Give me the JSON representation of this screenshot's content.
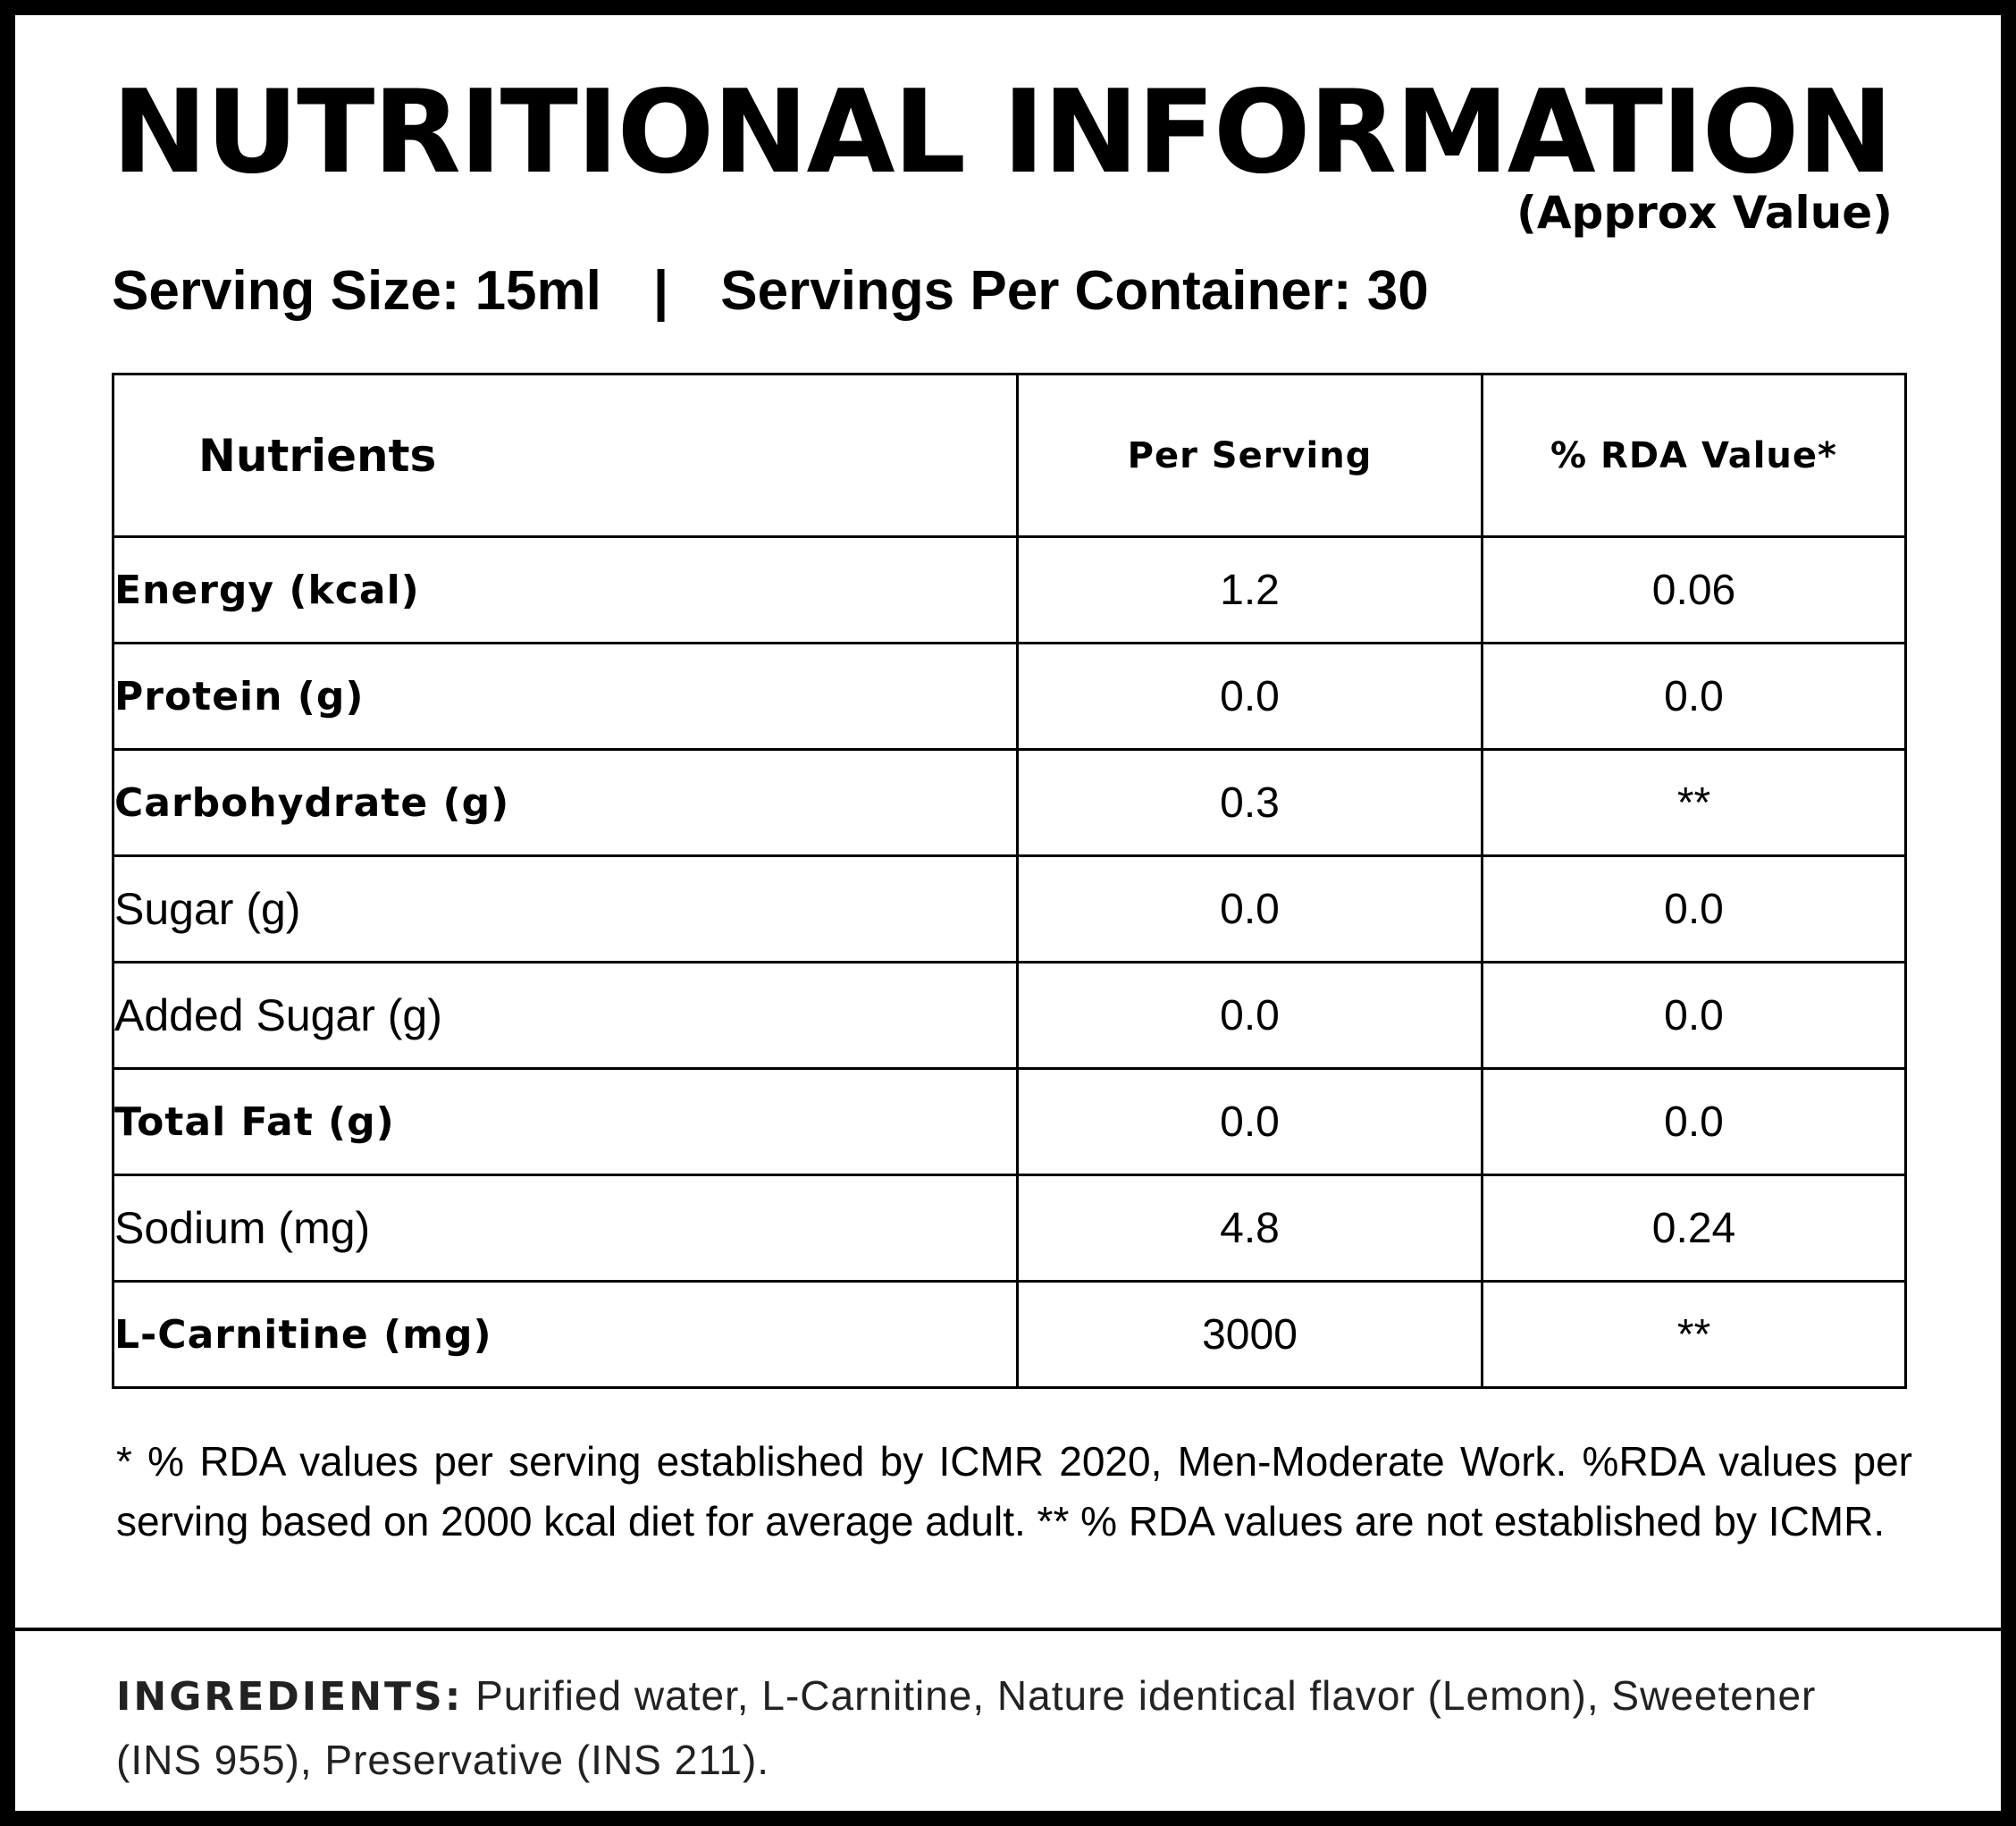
{
  "title": "NUTRITIONAL INFORMATION",
  "subtitle": "(Approx Value)",
  "serving": {
    "size": "Serving Size: 15ml",
    "separator": "|",
    "per_container": "Servings Per Container: 30"
  },
  "table": {
    "headers": [
      "Nutrients",
      "Per Serving",
      "% RDA Value*"
    ],
    "rows": [
      {
        "nutrient": "Energy (kcal)",
        "bold": true,
        "per_serving": "1.2",
        "rda": "0.06"
      },
      {
        "nutrient": "Protein (g)",
        "bold": true,
        "per_serving": "0.0",
        "rda": "0.0"
      },
      {
        "nutrient": "Carbohydrate (g)",
        "bold": true,
        "per_serving": "0.3",
        "rda": "**"
      },
      {
        "nutrient": "Sugar (g)",
        "bold": false,
        "per_serving": "0.0",
        "rda": "0.0"
      },
      {
        "nutrient": "Added Sugar (g)",
        "bold": false,
        "per_serving": "0.0",
        "rda": "0.0"
      },
      {
        "nutrient": "Total Fat (g)",
        "bold": true,
        "per_serving": "0.0",
        "rda": "0.0"
      },
      {
        "nutrient": "Sodium (mg)",
        "bold": false,
        "per_serving": "4.8",
        "rda": "0.24"
      },
      {
        "nutrient": "L-Carnitine (mg)",
        "bold": true,
        "per_serving": "3000",
        "rda": "**"
      }
    ]
  },
  "footnote": "* % RDA values per serving established by ICMR 2020,  Men-Moderate Work. %RDA values per serving based on 2000 kcal diet for average adult. ** % RDA values are not established by ICMR.",
  "ingredients": {
    "label": "INGREDIENTS:",
    "text": " Purified water, L-Carnitine, Nature identical flavor (Lemon), Sweetener (INS 955), Preservative (INS 211)."
  }
}
